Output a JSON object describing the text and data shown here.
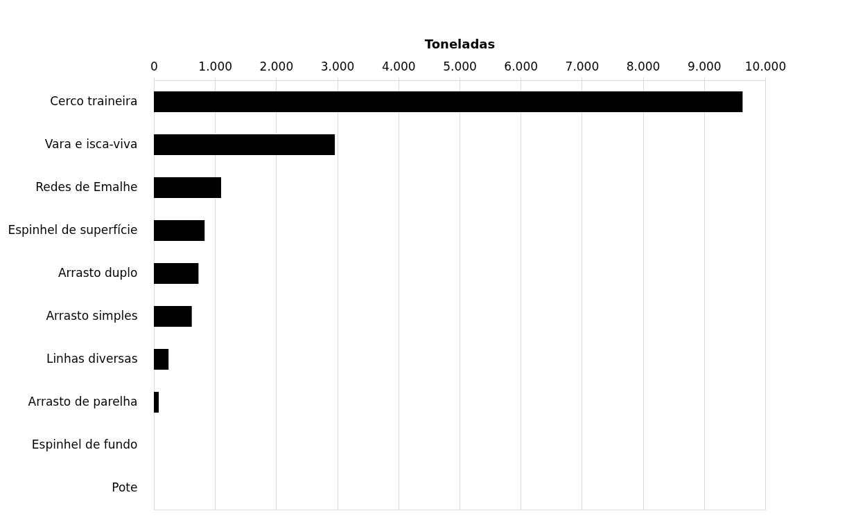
{
  "chart_data": {
    "type": "bar",
    "orientation": "horizontal",
    "xlabel": "Toneladas",
    "categories": [
      "Cerco traineira",
      "Vara e isca-viva",
      "Redes de Emalhe",
      "Espinhel de superfície",
      "Arrasto duplo",
      "Arrasto simples",
      "Linhas diversas",
      "Arrasto de parelha",
      "Espinhel de fundo",
      "Pote"
    ],
    "values": [
      9630,
      2960,
      1100,
      830,
      730,
      620,
      240,
      80,
      0,
      0
    ],
    "color": "#000000",
    "xlim": [
      0,
      10000
    ],
    "xticks": [
      0,
      {
        "value": 1000,
        "label": "1.000"
      },
      {
        "value": 2000,
        "label": "2.000"
      },
      {
        "value": 3000,
        "label": "3.000"
      },
      {
        "value": 4000,
        "label": "4.000"
      },
      {
        "value": 5000,
        "label": "5.000"
      },
      {
        "value": 6000,
        "label": "6.000"
      },
      {
        "value": 7000,
        "label": "7.000"
      },
      {
        "value": 8000,
        "label": "8.000"
      },
      {
        "value": 9000,
        "label": "9.000"
      },
      {
        "value": 10000,
        "label": "10.000"
      }
    ],
    "grid": "x"
  }
}
